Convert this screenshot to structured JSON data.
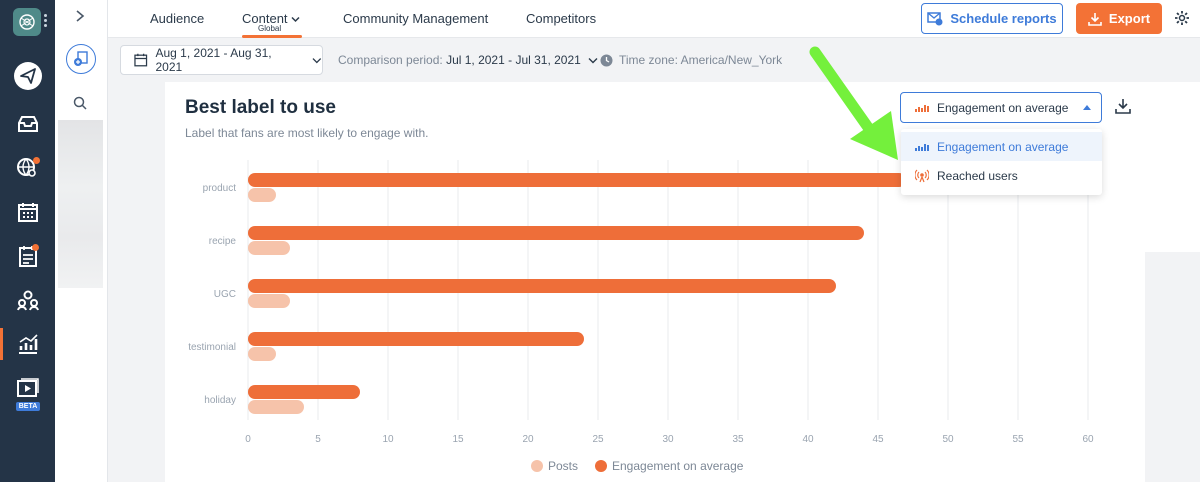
{
  "nav": {
    "tabs": [
      {
        "label": "Audience"
      },
      {
        "label": "Content",
        "sub": "Global"
      },
      {
        "label": "Community Management"
      },
      {
        "label": "Competitors"
      }
    ],
    "schedule_label": "Schedule reports",
    "export_label": "Export"
  },
  "sidebar": {
    "beta_label": "BETA"
  },
  "filters": {
    "date_range": "Aug 1, 2021 - Aug 31, 2021",
    "comparison_label": "Comparison period:",
    "comparison_value": "Jul 1, 2021 - Jul 31, 2021",
    "timezone": "Time zone: America/New_York"
  },
  "card": {
    "title": "Best label to use",
    "subtitle": "Label that fans are most likely to engage with."
  },
  "metric_select": {
    "value": "Engagement on average",
    "options": [
      "Engagement on average",
      "Reached users"
    ]
  },
  "colors": {
    "engagement": "#ee6e39",
    "posts": "#f6c3aa",
    "accent": "#3e7bd9",
    "arrow": "#74f03c"
  },
  "chart_data": {
    "type": "bar",
    "orientation": "horizontal",
    "categories": [
      "product",
      "recipe",
      "UGC",
      "testimonial",
      "holiday"
    ],
    "series": [
      {
        "name": "Engagement on average",
        "values": [
          47,
          44,
          42,
          24,
          8
        ]
      },
      {
        "name": "Posts",
        "values": [
          2,
          3,
          3,
          2,
          4
        ]
      }
    ],
    "xlim": [
      0,
      60
    ],
    "xticks": [
      0,
      5,
      10,
      15,
      20,
      25,
      30,
      35,
      40,
      45,
      50,
      55,
      60
    ],
    "grid": true,
    "legend": "bottom-center"
  }
}
